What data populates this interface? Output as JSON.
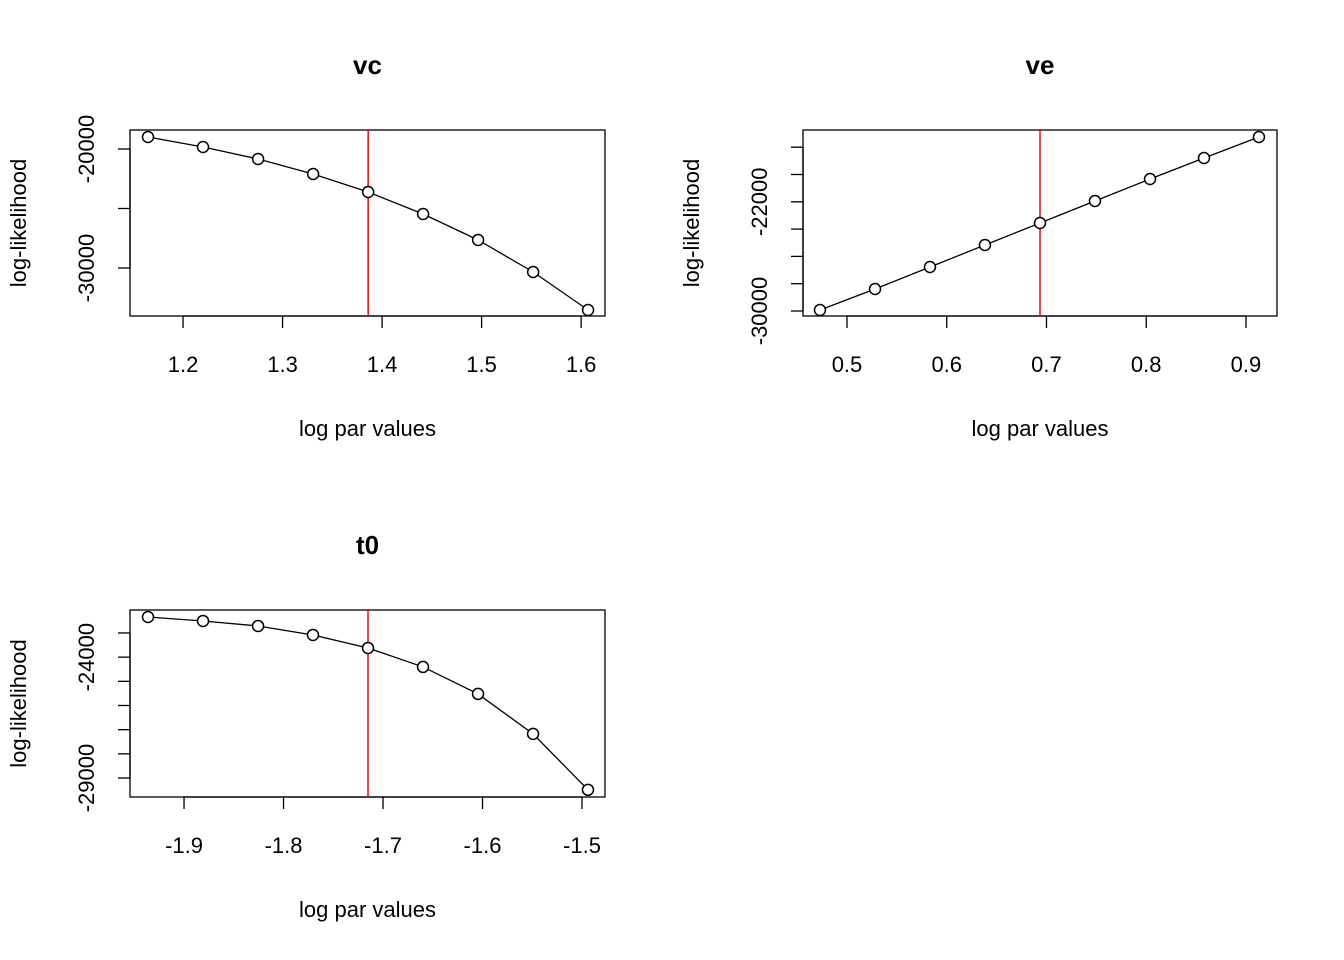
{
  "chart_data": [
    {
      "type": "line",
      "title": "vc",
      "xlabel": "log par values",
      "ylabel": "log-likelihood",
      "color": "#000000",
      "vline": 1.386,
      "vline_color": "#ff0000",
      "x": [
        1.1648,
        1.2201,
        1.2754,
        1.3307,
        1.386,
        1.4412,
        1.4965,
        1.5518,
        1.607
      ],
      "values": [
        -18992,
        -19832,
        -20840,
        -22101,
        -23613,
        -25462,
        -27647,
        -30336,
        -33529
      ],
      "xlim": [
        1.1467,
        1.624
      ],
      "ylim": [
        -34034,
        -18403
      ],
      "xticks": [
        1.2,
        1.3,
        1.4,
        1.5,
        1.6
      ],
      "yticks": [
        -20000,
        {
          "value": -25000,
          "label": null
        },
        -30000
      ]
    },
    {
      "type": "line",
      "title": "ve",
      "xlabel": "log par values",
      "ylabel": "log-likelihood",
      "color": "#000000",
      "vline": 0.6935,
      "vline_color": "#ff0000",
      "x": [
        0.4729,
        0.5281,
        0.5832,
        0.6383,
        0.6935,
        0.7486,
        0.8038,
        0.8579,
        0.913
      ],
      "values": [
        -29927,
        -28388,
        -26777,
        -25165,
        -23553,
        -21941,
        -20330,
        -18791,
        -17253
      ],
      "xlim": [
        0.4559,
        0.9311
      ],
      "ylim": [
        -30366,
        -16740
      ],
      "xticks": [
        0.5,
        0.6,
        0.7,
        0.8,
        0.9
      ],
      "yticks": [
        -30000,
        {
          "value": -28000,
          "label": null
        },
        {
          "value": -26000,
          "label": null
        },
        {
          "value": -24000,
          "label": null
        },
        -22000,
        {
          "value": -20000,
          "label": null
        },
        {
          "value": -18000,
          "label": null
        }
      ]
    },
    {
      "type": "line",
      "title": "t0",
      "xlabel": "log par values",
      "ylabel": "log-likelihood",
      "color": "#000000",
      "vline": -1.7151,
      "vline_color": "#ff0000",
      "x": [
        -1.9362,
        -1.8809,
        -1.8256,
        -1.7704,
        -1.7151,
        -1.6598,
        -1.6045,
        -1.5492,
        -1.494
      ],
      "values": [
        -22339,
        -22504,
        -22711,
        -23083,
        -23620,
        -24405,
        -25521,
        -27174,
        -29488
      ],
      "xlim": [
        -1.9543,
        -1.4769
      ],
      "ylim": [
        -29785,
        -22050
      ],
      "xticks": [
        -1.9,
        -1.8,
        -1.7,
        -1.6,
        -1.5
      ],
      "yticks": [
        {
          "value": -23000,
          "label": null
        },
        -24000,
        {
          "value": -25000,
          "label": null
        },
        {
          "value": -26000,
          "label": null
        },
        {
          "value": -27000,
          "label": null
        },
        {
          "value": -28000,
          "label": null
        },
        -29000
      ]
    }
  ]
}
